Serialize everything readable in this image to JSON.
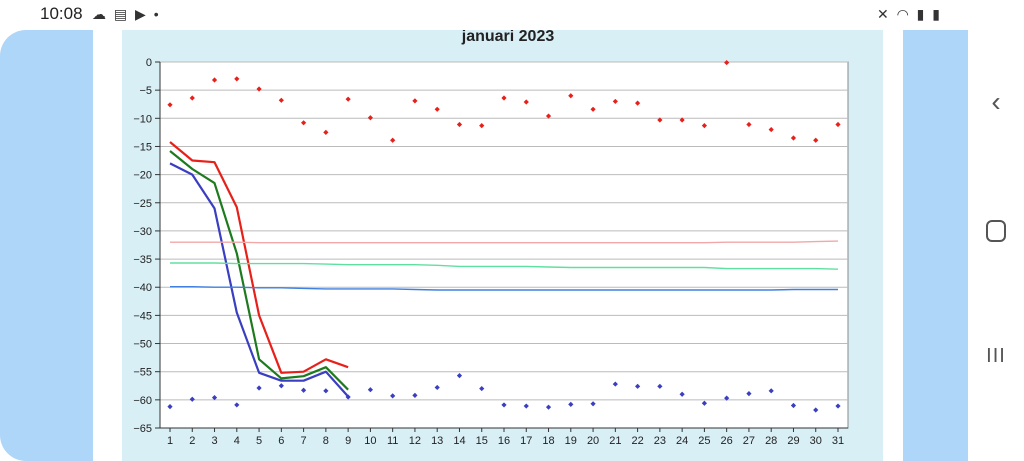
{
  "status_bar": {
    "time": "10:08",
    "left_icons": [
      "cloud-icon",
      "calendar-icon",
      "youtube-icon",
      "dot-icon"
    ],
    "right_icons": [
      "mute-icon",
      "wifi-icon",
      "signal-icon",
      "battery-icon"
    ]
  },
  "nav_bar": {
    "buttons": [
      "back-icon",
      "home-icon",
      "recent-apps-icon"
    ]
  },
  "colors": {
    "panel_bg": "#d8eff6",
    "plot_bg": "#ffffff",
    "side_bands": "#aed6f8",
    "red": "#e8201a",
    "green": "#1e7a1e",
    "blue": "#3a3ec0",
    "light_red": "#f0a8a8",
    "light_green": "#60e0a0",
    "light_blue": "#4080e0"
  },
  "chart_data": {
    "type": "line",
    "title": "januari 2023",
    "xlabel": "",
    "ylabel": "",
    "categories": [
      1,
      2,
      3,
      4,
      5,
      6,
      7,
      8,
      9,
      10,
      11,
      12,
      13,
      14,
      15,
      16,
      17,
      18,
      19,
      20,
      21,
      22,
      23,
      24,
      25,
      26,
      27,
      28,
      29,
      30,
      31
    ],
    "ylim": [
      -65,
      0
    ],
    "yticks": [
      0,
      -5,
      -10,
      -15,
      -20,
      -25,
      -30,
      -35,
      -40,
      -45,
      -50,
      -55,
      -60,
      -65
    ],
    "grid": "horizontal",
    "series": [
      {
        "type": "line",
        "color": "#e8201a",
        "values": [
          -14.2,
          -17.5,
          -17.8,
          -25.8,
          -45,
          -55.2,
          -55,
          -52.8,
          -54.2,
          null,
          null,
          null,
          null,
          null,
          null,
          null,
          null,
          null,
          null,
          null,
          null,
          null,
          null,
          null,
          null,
          null,
          null,
          null,
          null,
          null,
          null
        ]
      },
      {
        "type": "line",
        "color": "#1e7a1e",
        "values": [
          -15.8,
          -19,
          -21.5,
          -34,
          -52.8,
          -56.2,
          -55.8,
          -54.2,
          -58.2,
          null,
          null,
          null,
          null,
          null,
          null,
          null,
          null,
          null,
          null,
          null,
          null,
          null,
          null,
          null,
          null,
          null,
          null,
          null,
          null,
          null,
          null
        ]
      },
      {
        "type": "line",
        "color": "#3a3ec0",
        "values": [
          -18,
          -20,
          -26,
          -44.5,
          -55.2,
          -56.6,
          -56.6,
          -55,
          -59.4,
          null,
          null,
          null,
          null,
          null,
          null,
          null,
          null,
          null,
          null,
          null,
          null,
          null,
          null,
          null,
          null,
          null,
          null,
          null,
          null,
          null,
          null
        ]
      },
      {
        "type": "scatter",
        "color": "#e8201a",
        "marker": "diamond",
        "values": [
          -7.6,
          -6.4,
          -3.2,
          -3,
          -4.8,
          -6.8,
          -10.8,
          -12.5,
          -6.6,
          -9.9,
          -13.9,
          -6.9,
          -8.4,
          -11.1,
          -11.3,
          -6.4,
          -7.1,
          -9.6,
          -6,
          -8.4,
          -7,
          -7.3,
          -10.3,
          -10.3,
          -11.3,
          -0.1,
          -11.1,
          -12,
          -13.5,
          -13.9,
          -11.1
        ]
      },
      {
        "type": "scatter",
        "color": "#3a3ec0",
        "marker": "diamond",
        "values": [
          -61.2,
          -59.9,
          -59.6,
          -60.9,
          -57.9,
          -57.5,
          -58.3,
          -58.4,
          -59.5,
          -58.2,
          -59.3,
          -59.2,
          -57.8,
          -55.7,
          -58,
          -60.9,
          -61.1,
          -61.3,
          -60.8,
          -60.7,
          -57.2,
          -57.6,
          -57.6,
          -59,
          -60.6,
          -59.7,
          -58.9,
          -58.4,
          -61,
          -61.8,
          -61.1
        ]
      },
      {
        "type": "line",
        "color": "#f0a8a8",
        "values": [
          -32,
          -32,
          -32,
          -32,
          -32.1,
          -32.1,
          -32.1,
          -32.1,
          -32.1,
          -32.1,
          -32.1,
          -32.1,
          -32.1,
          -32.1,
          -32.1,
          -32.1,
          -32.1,
          -32.1,
          -32.1,
          -32.1,
          -32.1,
          -32.1,
          -32.1,
          -32.1,
          -32.1,
          -32,
          -32,
          -32,
          -32,
          -31.9,
          -31.8
        ]
      },
      {
        "type": "line",
        "color": "#60e0a0",
        "values": [
          -35.7,
          -35.7,
          -35.7,
          -35.8,
          -35.8,
          -35.8,
          -35.8,
          -35.9,
          -36,
          -36,
          -36,
          -36,
          -36.1,
          -36.3,
          -36.3,
          -36.3,
          -36.3,
          -36.4,
          -36.5,
          -36.5,
          -36.5,
          -36.5,
          -36.5,
          -36.5,
          -36.5,
          -36.7,
          -36.7,
          -36.7,
          -36.7,
          -36.7,
          -36.8
        ]
      },
      {
        "type": "line",
        "color": "#4080e0",
        "values": [
          -39.9,
          -39.9,
          -40,
          -40,
          -40.1,
          -40.1,
          -40.2,
          -40.3,
          -40.3,
          -40.3,
          -40.3,
          -40.4,
          -40.5,
          -40.5,
          -40.5,
          -40.5,
          -40.5,
          -40.5,
          -40.5,
          -40.5,
          -40.5,
          -40.5,
          -40.5,
          -40.5,
          -40.5,
          -40.5,
          -40.5,
          -40.5,
          -40.4,
          -40.4,
          -40.4
        ]
      }
    ]
  }
}
